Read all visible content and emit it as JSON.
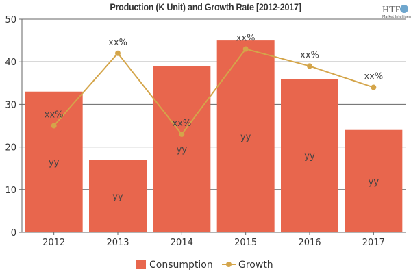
{
  "chart_data": {
    "type": "bar",
    "title": "Production (K Unit) and Growth Rate [2012-2017]",
    "categories": [
      "2012",
      "2013",
      "2014",
      "2015",
      "2016",
      "2017"
    ],
    "series": [
      {
        "name": "Consumption",
        "type": "bar",
        "color": "#e8664d",
        "values": [
          33,
          17,
          39,
          45,
          36,
          24
        ],
        "data_labels": [
          "yy",
          "yy",
          "yy",
          "yy",
          "yy",
          "yy"
        ]
      },
      {
        "name": "Growth",
        "type": "line",
        "color": "#d4a54a",
        "values": [
          25,
          42,
          23,
          43,
          39,
          34
        ],
        "data_labels": [
          "xx%",
          "xx%",
          "xx%",
          "xx%",
          "xx%",
          "xx%"
        ]
      }
    ],
    "ylim": [
      0,
      50
    ],
    "yticks": [
      0,
      10,
      20,
      30,
      40,
      50
    ],
    "grid": true,
    "legend": "bottom"
  },
  "logo": {
    "text": "HTF",
    "subtext": "Market Intelligence"
  }
}
